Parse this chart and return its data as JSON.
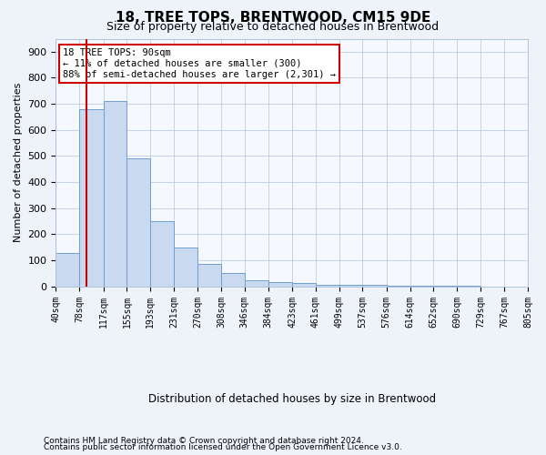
{
  "title": "18, TREE TOPS, BRENTWOOD, CM15 9DE",
  "subtitle": "Size of property relative to detached houses in Brentwood",
  "xlabel": "Distribution of detached houses by size in Brentwood",
  "ylabel": "Number of detached properties",
  "bar_values": [
    130,
    680,
    710,
    490,
    250,
    150,
    85,
    50,
    22,
    18,
    12,
    8,
    5,
    5,
    4,
    3,
    2,
    2
  ],
  "bin_edges": [
    40,
    78,
    117,
    155,
    193,
    231,
    270,
    308,
    346,
    384,
    423,
    461,
    499,
    537,
    576,
    614,
    652,
    690,
    729
  ],
  "x_tick_positions": [
    40,
    78,
    117,
    155,
    193,
    231,
    270,
    308,
    346,
    384,
    423,
    461,
    499,
    537,
    576,
    614,
    652,
    690,
    729,
    767,
    805
  ],
  "bin_labels": [
    "40sqm",
    "78sqm",
    "117sqm",
    "155sqm",
    "193sqm",
    "231sqm",
    "270sqm",
    "308sqm",
    "346sqm",
    "384sqm",
    "423sqm",
    "461sqm",
    "499sqm",
    "537sqm",
    "576sqm",
    "614sqm",
    "652sqm",
    "690sqm",
    "729sqm",
    "767sqm",
    "805sqm"
  ],
  "bar_color": "#c9d9f0",
  "bar_edge_color": "#6f9fcf",
  "vline_x": 90,
  "vline_color": "#cc0000",
  "annotation_text": "18 TREE TOPS: 90sqm\n← 11% of detached houses are smaller (300)\n88% of semi-detached houses are larger (2,301) →",
  "annotation_box_color": "#cc0000",
  "ylim": [
    0,
    950
  ],
  "yticks": [
    0,
    100,
    200,
    300,
    400,
    500,
    600,
    700,
    800,
    900
  ],
  "footer1": "Contains HM Land Registry data © Crown copyright and database right 2024.",
  "footer2": "Contains public sector information licensed under the Open Government Licence v3.0.",
  "bg_color": "#eef3fa",
  "plot_bg_color": "#f5f8fe",
  "xlim": [
    40,
    805
  ]
}
